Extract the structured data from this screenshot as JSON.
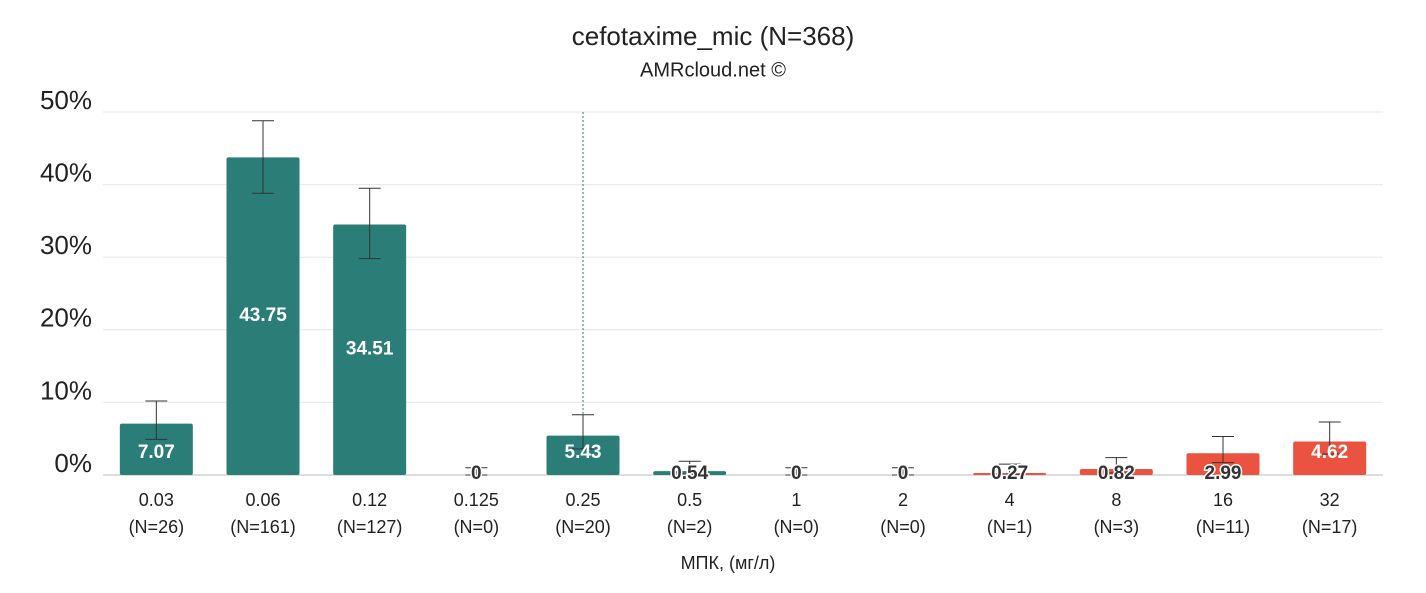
{
  "chart_data": {
    "type": "bar",
    "title": "cefotaxime_mic (N=368)",
    "subtitle": "AMRcloud.net ©",
    "x_label": "МПК, (мг/л)",
    "categories": [
      "0.03",
      "0.06",
      "0.12",
      "0.125",
      "0.25",
      "0.5",
      "1",
      "2",
      "4",
      "8",
      "16",
      "32"
    ],
    "category_counts": [
      "(N=26)",
      "(N=161)",
      "(N=127)",
      "(N=0)",
      "(N=20)",
      "(N=2)",
      "(N=0)",
      "(N=0)",
      "(N=1)",
      "(N=3)",
      "(N=11)",
      "(N=17)"
    ],
    "values": [
      7.07,
      43.75,
      34.51,
      0,
      5.43,
      0.54,
      0,
      0,
      0.27,
      0.82,
      2.99,
      4.62
    ],
    "error_low": [
      4.9,
      38.8,
      29.8,
      0,
      3.6,
      0.1,
      0,
      0,
      0.05,
      0.3,
      1.7,
      2.9
    ],
    "error_high": [
      10.2,
      48.8,
      39.5,
      1.0,
      8.3,
      1.9,
      1.0,
      1.0,
      1.5,
      2.4,
      5.3,
      7.3
    ],
    "colors": [
      "#2b7e77",
      "#2b7e77",
      "#2b7e77",
      "#2b7e77",
      "#2b7e77",
      "#2b7e77",
      "#2b7e77",
      "#2b7e77",
      "#e9533f",
      "#e9533f",
      "#e9533f",
      "#e9533f"
    ],
    "vline_category": "0.25",
    "ylim": [
      0,
      50
    ],
    "yticks": [
      {
        "value": 0,
        "label": "0%"
      },
      {
        "value": 10,
        "label": "10%"
      },
      {
        "value": 20,
        "label": "20%"
      },
      {
        "value": 30,
        "label": "30%"
      },
      {
        "value": 40,
        "label": "40%"
      },
      {
        "value": 50,
        "label": "50%"
      }
    ],
    "grid": true
  }
}
